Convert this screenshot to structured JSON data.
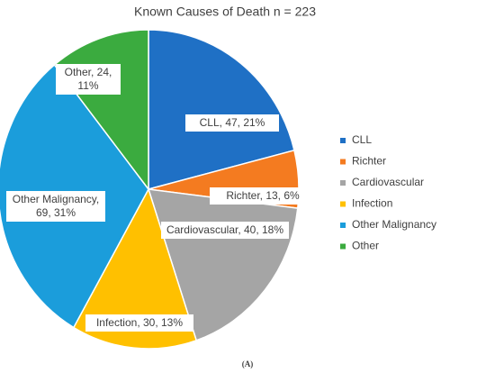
{
  "chart_data": {
    "type": "pie",
    "title": "Known Causes of Death n = 223",
    "categories": [
      "CLL",
      "Richter",
      "Cardiovascular",
      "Infection",
      "Other Malignancy",
      "Other"
    ],
    "values": [
      47,
      13,
      40,
      30,
      69,
      24
    ],
    "value_labels": [
      "CLL, 47, 21%",
      "Richter, 13, 6%",
      "Cardiovascular, 40, 18%",
      "Infection, 30, 13%",
      "Other Malignancy, 69, 31%",
      "Other, 24, 11%"
    ],
    "colors": [
      "#1f70c5",
      "#f47b20",
      "#a5a5a5",
      "#ffc000",
      "#1b9ddb",
      "#3bab3f"
    ],
    "legend": "right",
    "caption": "(A)"
  }
}
